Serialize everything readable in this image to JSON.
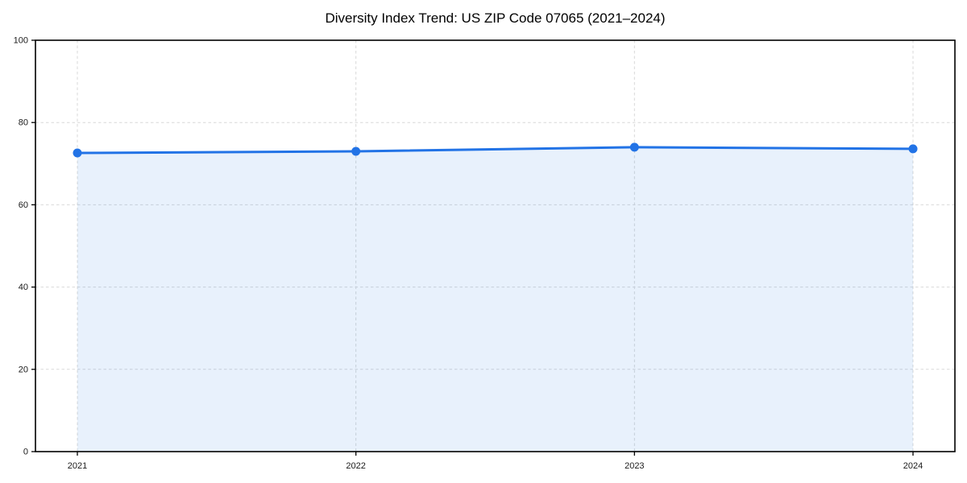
{
  "figure": {
    "background": "#ffffff"
  },
  "chart_data": {
    "type": "area",
    "title": "Diversity Index Trend: US ZIP Code 07065 (2021–2024)",
    "categories": [
      "2021",
      "2022",
      "2023",
      "2024"
    ],
    "series": [
      {
        "name": "Diversity Index",
        "values": [
          72.6,
          73.0,
          74.0,
          73.6
        ]
      }
    ],
    "xlabel": "",
    "ylabel": "",
    "ylim": [
      0,
      100
    ],
    "y_ticks": [
      0,
      20,
      40,
      60,
      80,
      100
    ],
    "grid": true,
    "grid_style": "dashed",
    "legend": "none",
    "line_color": "#2273e6",
    "marker_color": "#2273e6",
    "fill_color": "#2273e6",
    "fill_opacity": 0.1,
    "grid_color": "#d9d9d9",
    "axis_color": "#000000",
    "tick_label_color": "#1a1a1a",
    "title_color": "#000000"
  }
}
